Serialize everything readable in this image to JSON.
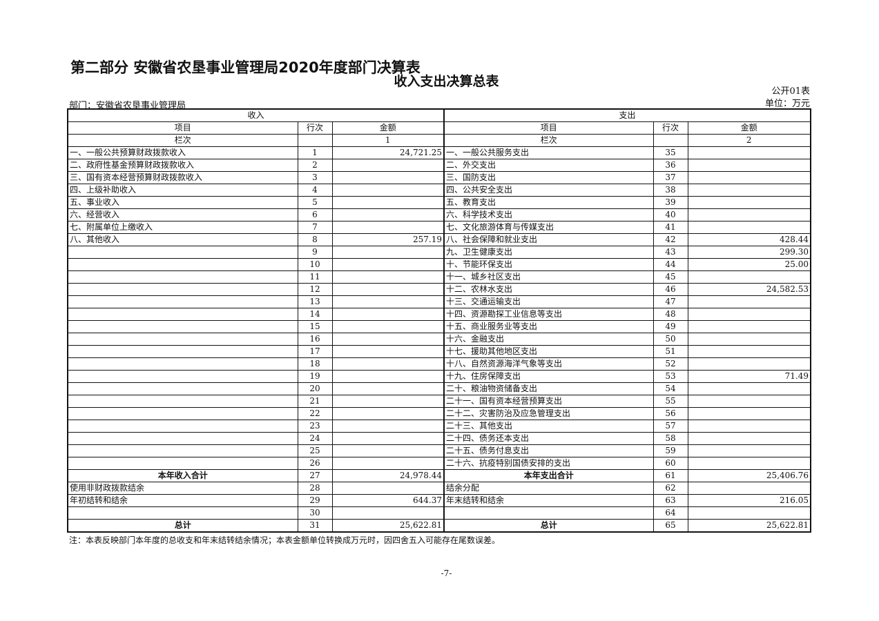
{
  "header": {
    "part_title": "第二部分 安徽省农垦事业管理局2020年度部门决算表",
    "table_title": "收入支出决算总表",
    "form_no": "公开01表",
    "department": "部门：安徽省农垦事业管理局",
    "unit": "单位：万元"
  },
  "columns": {
    "income": "收入",
    "expense": "支出",
    "item": "项目",
    "line": "行次",
    "amount": "金额",
    "col_index": "栏次",
    "income_col_no": "1",
    "expense_col_no": "2"
  },
  "rows": [
    {
      "l": [
        "一、一般公共预算财政拨款收入",
        "1",
        "24,721.25"
      ],
      "r": [
        "一、一般公共服务支出",
        "35",
        ""
      ]
    },
    {
      "l": [
        "二、政府性基金预算财政拨款收入",
        "2",
        ""
      ],
      "r": [
        "二、外交支出",
        "36",
        ""
      ]
    },
    {
      "l": [
        "三、国有资本经营预算财政拨款收入",
        "3",
        ""
      ],
      "r": [
        "三、国防支出",
        "37",
        ""
      ]
    },
    {
      "l": [
        "四、上级补助收入",
        "4",
        ""
      ],
      "r": [
        "四、公共安全支出",
        "38",
        ""
      ]
    },
    {
      "l": [
        "五、事业收入",
        "5",
        ""
      ],
      "r": [
        "五、教育支出",
        "39",
        ""
      ]
    },
    {
      "l": [
        "六、经营收入",
        "6",
        ""
      ],
      "r": [
        "六、科学技术支出",
        "40",
        ""
      ]
    },
    {
      "l": [
        "七、附属单位上缴收入",
        "7",
        ""
      ],
      "r": [
        "七、文化旅游体育与传媒支出",
        "41",
        ""
      ]
    },
    {
      "l": [
        "八、其他收入",
        "8",
        "257.19"
      ],
      "r": [
        "八、社会保障和就业支出",
        "42",
        "428.44"
      ]
    },
    {
      "l": [
        "",
        "9",
        ""
      ],
      "r": [
        "九、卫生健康支出",
        "43",
        "299.30"
      ]
    },
    {
      "l": [
        "",
        "10",
        ""
      ],
      "r": [
        "十、节能环保支出",
        "44",
        "25.00"
      ]
    },
    {
      "l": [
        "",
        "11",
        ""
      ],
      "r": [
        "十一、城乡社区支出",
        "45",
        ""
      ]
    },
    {
      "l": [
        "",
        "12",
        ""
      ],
      "r": [
        "十二、农林水支出",
        "46",
        "24,582.53"
      ]
    },
    {
      "l": [
        "",
        "13",
        ""
      ],
      "r": [
        "十三、交通运输支出",
        "47",
        ""
      ]
    },
    {
      "l": [
        "",
        "14",
        ""
      ],
      "r": [
        "十四、资源勘探工业信息等支出",
        "48",
        ""
      ]
    },
    {
      "l": [
        "",
        "15",
        ""
      ],
      "r": [
        "十五、商业服务业等支出",
        "49",
        ""
      ]
    },
    {
      "l": [
        "",
        "16",
        ""
      ],
      "r": [
        "十六、金融支出",
        "50",
        ""
      ]
    },
    {
      "l": [
        "",
        "17",
        ""
      ],
      "r": [
        "十七、援助其他地区支出",
        "51",
        ""
      ]
    },
    {
      "l": [
        "",
        "18",
        ""
      ],
      "r": [
        "十八、自然资源海洋气象等支出",
        "52",
        ""
      ]
    },
    {
      "l": [
        "",
        "19",
        ""
      ],
      "r": [
        "十九、住房保障支出",
        "53",
        "71.49"
      ]
    },
    {
      "l": [
        "",
        "20",
        ""
      ],
      "r": [
        "二十、粮油物资储备支出",
        "54",
        ""
      ]
    },
    {
      "l": [
        "",
        "21",
        ""
      ],
      "r": [
        "二十一、国有资本经营预算支出",
        "55",
        ""
      ]
    },
    {
      "l": [
        "",
        "22",
        ""
      ],
      "r": [
        "二十二、灾害防治及应急管理支出",
        "56",
        ""
      ]
    },
    {
      "l": [
        "",
        "23",
        ""
      ],
      "r": [
        "二十三、其他支出",
        "57",
        ""
      ]
    },
    {
      "l": [
        "",
        "24",
        ""
      ],
      "r": [
        "二十四、债务还本支出",
        "58",
        ""
      ]
    },
    {
      "l": [
        "",
        "25",
        ""
      ],
      "r": [
        "二十五、债务付息支出",
        "59",
        ""
      ]
    },
    {
      "l": [
        "",
        "26",
        ""
      ],
      "r": [
        "二十六、抗疫特别国债安排的支出",
        "60",
        ""
      ]
    },
    {
      "l": [
        "本年收入合计",
        "27",
        "24,978.44"
      ],
      "r": [
        "本年支出合计",
        "61",
        "25,406.76"
      ],
      "bold": true
    },
    {
      "l": [
        "使用非财政拨款结余",
        "28",
        ""
      ],
      "r": [
        "结余分配",
        "62",
        ""
      ]
    },
    {
      "l": [
        "年初结转和结余",
        "29",
        "644.37"
      ],
      "r": [
        "年末结转和结余",
        "63",
        "216.05"
      ]
    },
    {
      "l": [
        "",
        "30",
        ""
      ],
      "r": [
        "",
        "64",
        ""
      ]
    },
    {
      "l": [
        "总计",
        "31",
        "25,622.81"
      ],
      "r": [
        "总计",
        "65",
        "25,622.81"
      ],
      "bold": true
    }
  ],
  "footer": {
    "note": "注：本表反映部门本年度的总收支和年末结转结余情况；本表金额单位转换成万元时，因四舍五入可能存在尾数误差。",
    "page_number": "-7-"
  }
}
